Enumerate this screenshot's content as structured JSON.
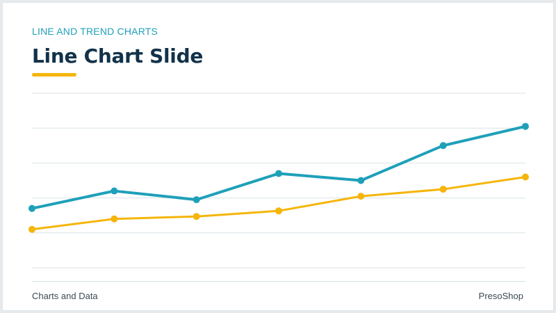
{
  "slide": {
    "eyebrow": "LINE AND TREND CHARTS",
    "title": "Line Chart Slide",
    "footer_left": "Charts and Data",
    "footer_right": "PresoShop"
  },
  "colors": {
    "accent": "#1fa0b9",
    "secondary": "#f5b50a",
    "title": "#12324a",
    "grid": "#d8e2e6"
  },
  "chart_data": {
    "type": "line",
    "x": [
      1,
      2,
      3,
      4,
      5,
      6,
      7
    ],
    "ylim": [
      0,
      5
    ],
    "grid": true,
    "series": [
      {
        "color": "#1fa0b9",
        "values": [
          1.7,
          2.2,
          1.95,
          2.7,
          2.5,
          3.5,
          4.05
        ]
      },
      {
        "color": "#f5b50a",
        "values": [
          1.1,
          1.4,
          1.47,
          1.63,
          2.05,
          2.25,
          2.6
        ]
      }
    ]
  }
}
